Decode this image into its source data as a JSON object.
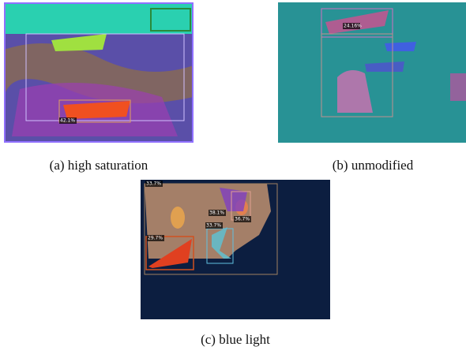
{
  "figures": [
    {
      "caption": "(a) high saturation",
      "labels": [
        "42.1%"
      ]
    },
    {
      "caption": "(b) unmodified",
      "labels": [
        "24.16%"
      ]
    },
    {
      "caption": "(c) blue light",
      "labels": [
        "33.7%",
        "29.7%",
        "38.1%",
        "36.7%",
        "33.7%"
      ]
    }
  ]
}
